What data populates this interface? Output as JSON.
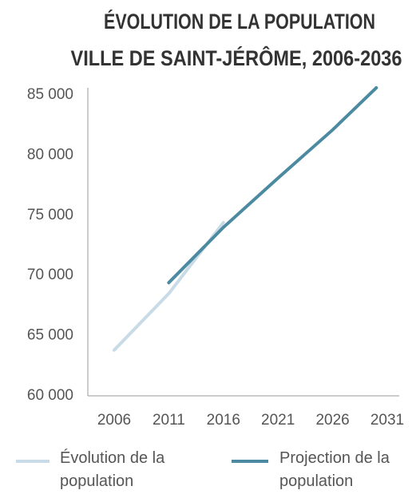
{
  "chart_data": {
    "type": "line",
    "title": [
      "ÉVOLUTION DE LA POPULATION",
      "VILLE DE SAINT-JÉRÔME, 2006-2036"
    ],
    "series": [
      {
        "name": "Évolution de la population",
        "color": "#c8dbe7",
        "x": [
          2006,
          2011,
          2016
        ],
        "values": [
          63800,
          68500,
          74400
        ]
      },
      {
        "name": "Projection de la population",
        "color": "#4b8aa0",
        "x": [
          2011,
          2016,
          2021,
          2026,
          2030
        ],
        "values": [
          69400,
          74000,
          78100,
          82100,
          85600
        ]
      }
    ],
    "xlim": [
      2006,
      2031
    ],
    "xticks": [
      2006,
      2011,
      2016,
      2021,
      2026,
      2031
    ],
    "ylim": [
      60000,
      85000
    ],
    "yticks": [
      {
        "value": 60000,
        "label": "60 000"
      },
      {
        "value": 65000,
        "label": "65 000"
      },
      {
        "value": 70000,
        "label": "70 000"
      },
      {
        "value": 75000,
        "label": "75 000"
      },
      {
        "value": 80000,
        "label": "80 000"
      },
      {
        "value": 85000,
        "label": "85 000"
      }
    ],
    "grid": false
  }
}
